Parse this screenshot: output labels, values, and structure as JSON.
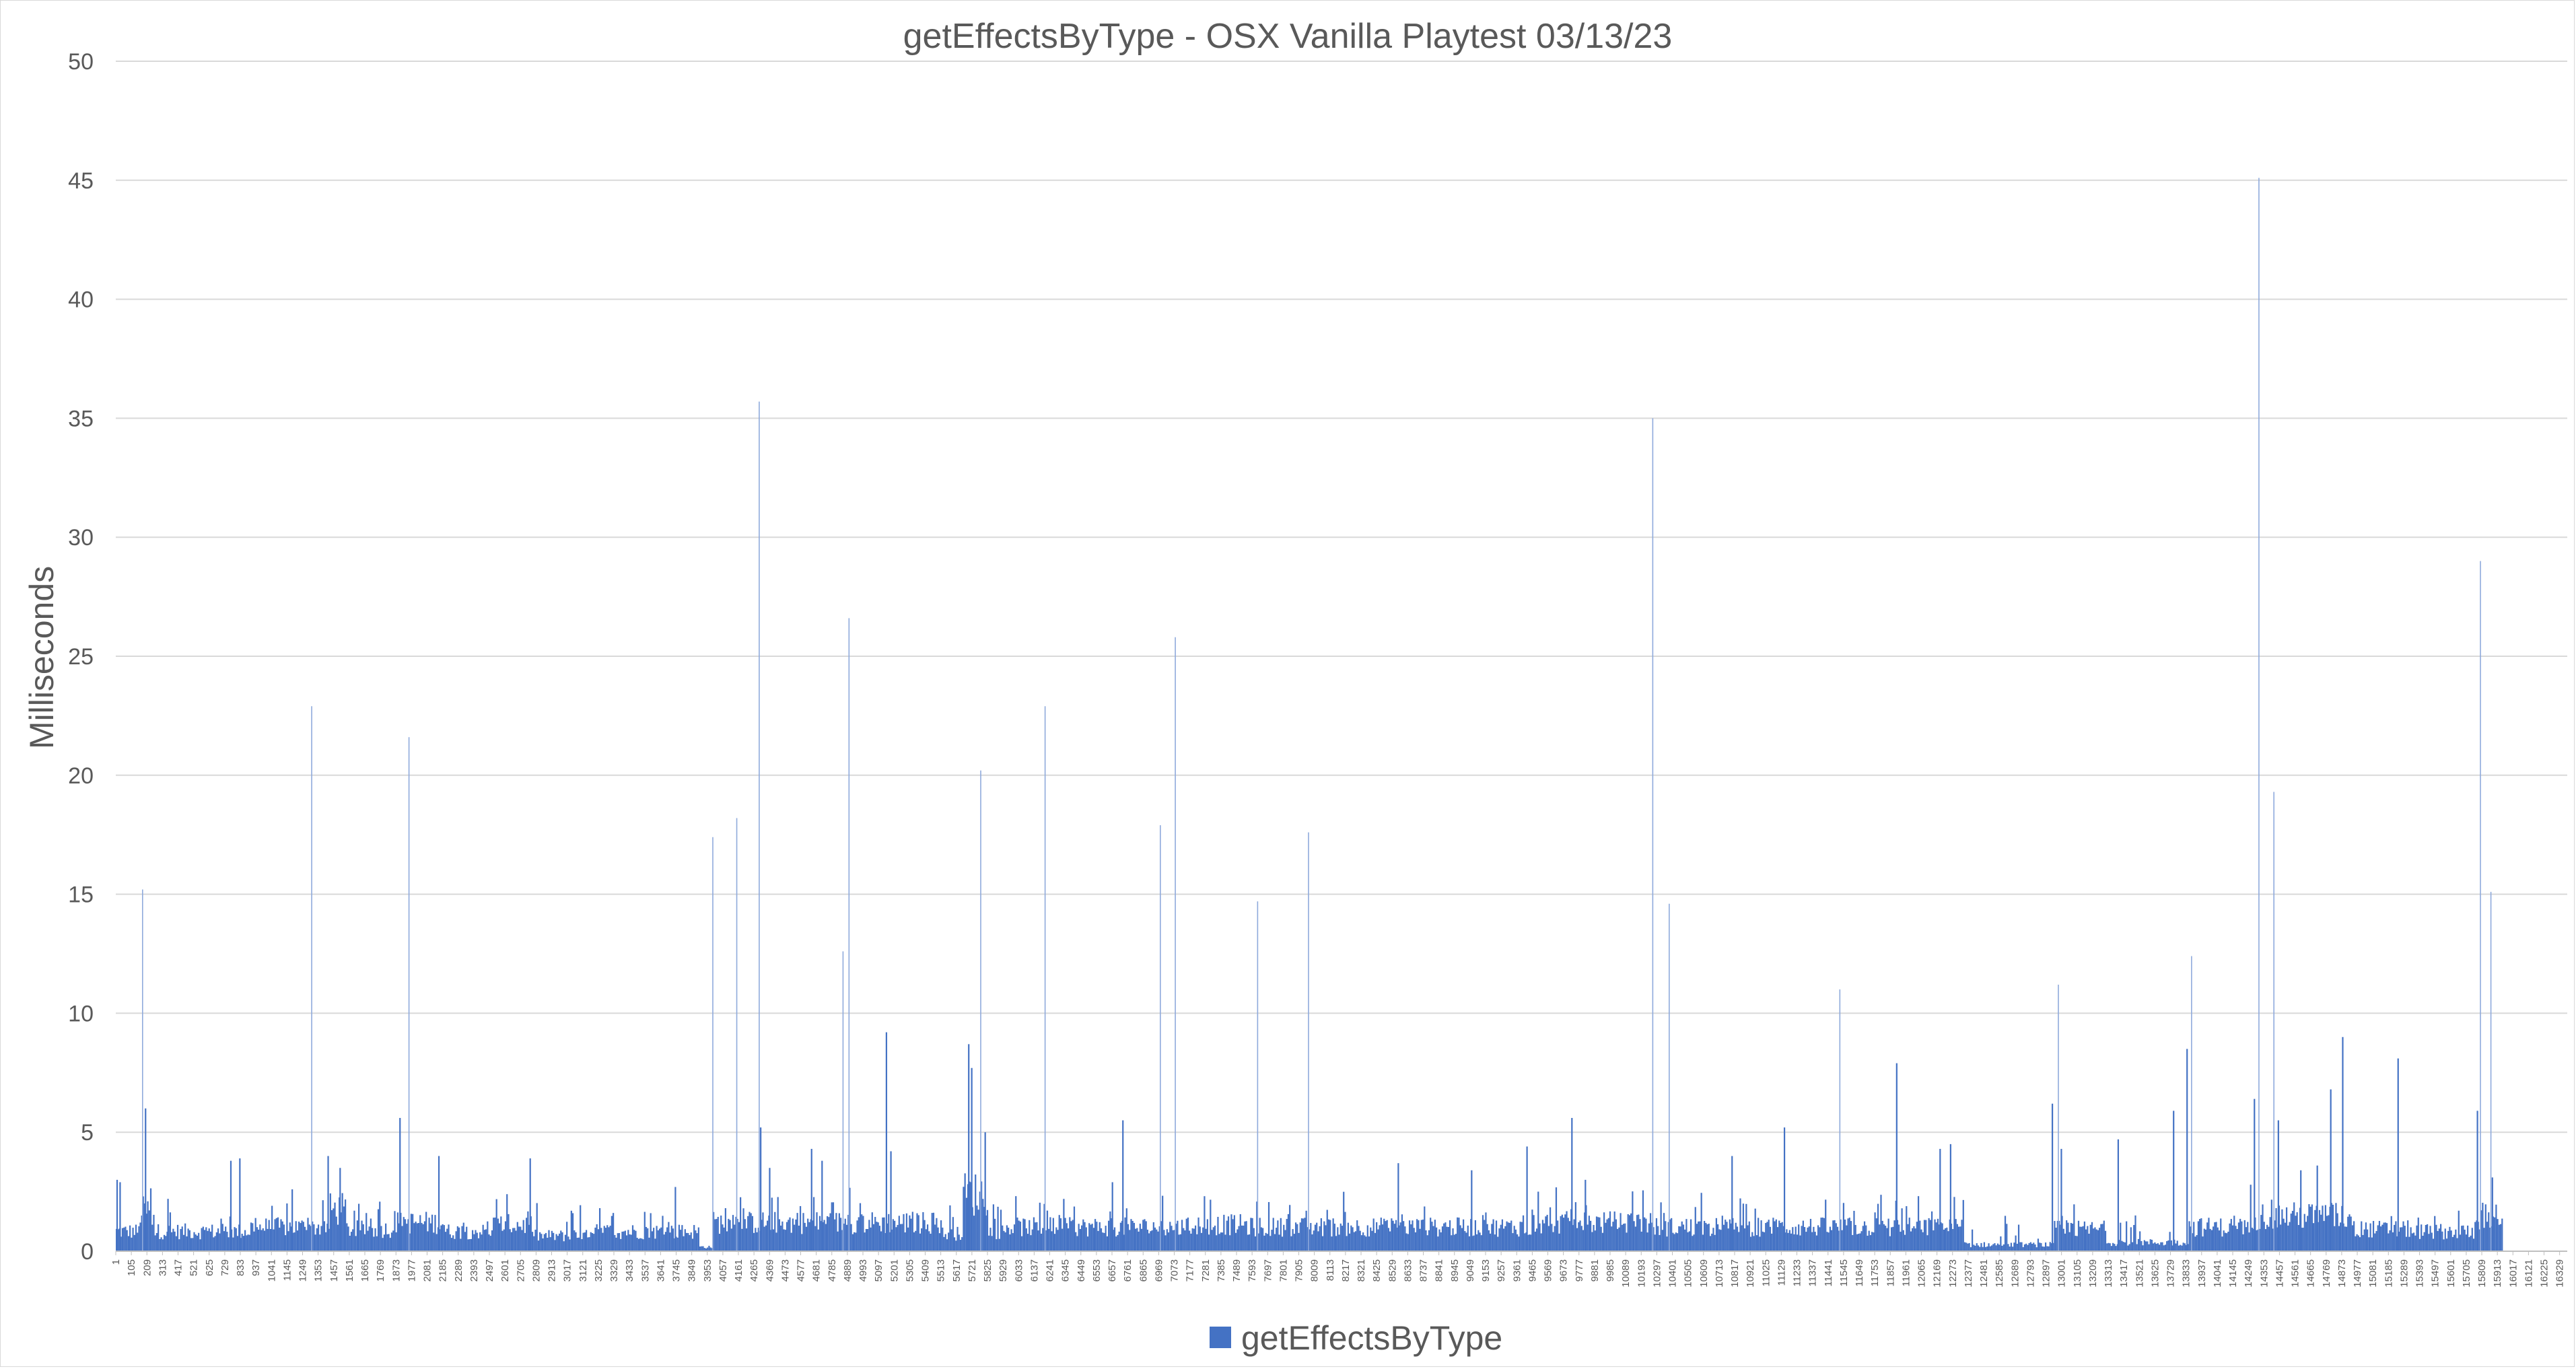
{
  "chart_data": {
    "type": "bar",
    "title": "getEffectsByType - OSX Vanilla Playtest 03/13/23",
    "xlabel": "",
    "ylabel": "Milliseconds",
    "ylim": [
      0,
      50
    ],
    "yticks": [
      0,
      5,
      10,
      15,
      20,
      25,
      30,
      35,
      40,
      45,
      50
    ],
    "xlim": [
      1,
      16380
    ],
    "x_tick_step": 104,
    "grid": true,
    "legend_position": "bottom",
    "bar_color": "#4472c4",
    "series": [
      {
        "name": "getEffectsByType",
        "spikes": [
          {
            "x": 10,
            "y": 3.0
          },
          {
            "x": 30,
            "y": 2.9
          },
          {
            "x": 180,
            "y": 15.2
          },
          {
            "x": 200,
            "y": 6.0
          },
          {
            "x": 350,
            "y": 2.2
          },
          {
            "x": 770,
            "y": 3.8
          },
          {
            "x": 830,
            "y": 3.9
          },
          {
            "x": 1180,
            "y": 2.6
          },
          {
            "x": 1310,
            "y": 22.9
          },
          {
            "x": 1420,
            "y": 4.0
          },
          {
            "x": 1500,
            "y": 3.5
          },
          {
            "x": 1900,
            "y": 5.6
          },
          {
            "x": 1960,
            "y": 21.6
          },
          {
            "x": 2160,
            "y": 4.0
          },
          {
            "x": 2770,
            "y": 3.9
          },
          {
            "x": 3740,
            "y": 2.7
          },
          {
            "x": 3990,
            "y": 17.4
          },
          {
            "x": 4150,
            "y": 18.2
          },
          {
            "x": 4300,
            "y": 35.7
          },
          {
            "x": 4310,
            "y": 5.2
          },
          {
            "x": 4370,
            "y": 3.5
          },
          {
            "x": 4650,
            "y": 4.3
          },
          {
            "x": 4720,
            "y": 3.8
          },
          {
            "x": 4860,
            "y": 12.6
          },
          {
            "x": 4900,
            "y": 26.6
          },
          {
            "x": 5150,
            "y": 9.2
          },
          {
            "x": 5180,
            "y": 4.2
          },
          {
            "x": 5700,
            "y": 8.7
          },
          {
            "x": 5720,
            "y": 7.7
          },
          {
            "x": 5780,
            "y": 20.2
          },
          {
            "x": 5810,
            "y": 5.0
          },
          {
            "x": 6210,
            "y": 22.9
          },
          {
            "x": 6660,
            "y": 2.9
          },
          {
            "x": 6730,
            "y": 5.5
          },
          {
            "x": 6980,
            "y": 17.9
          },
          {
            "x": 7080,
            "y": 25.8
          },
          {
            "x": 7630,
            "y": 14.7
          },
          {
            "x": 7970,
            "y": 17.6
          },
          {
            "x": 8570,
            "y": 3.7
          },
          {
            "x": 9060,
            "y": 3.4
          },
          {
            "x": 9430,
            "y": 4.4
          },
          {
            "x": 9730,
            "y": 5.6
          },
          {
            "x": 9820,
            "y": 3.0
          },
          {
            "x": 10270,
            "y": 35.0
          },
          {
            "x": 10380,
            "y": 14.6
          },
          {
            "x": 10800,
            "y": 4.0
          },
          {
            "x": 11150,
            "y": 5.2
          },
          {
            "x": 11520,
            "y": 11.0
          },
          {
            "x": 11900,
            "y": 7.9
          },
          {
            "x": 12190,
            "y": 4.3
          },
          {
            "x": 12260,
            "y": 4.5
          },
          {
            "x": 12940,
            "y": 6.2
          },
          {
            "x": 12980,
            "y": 11.2
          },
          {
            "x": 13000,
            "y": 4.3
          },
          {
            "x": 13380,
            "y": 4.7
          },
          {
            "x": 13750,
            "y": 5.9
          },
          {
            "x": 13840,
            "y": 8.5
          },
          {
            "x": 13870,
            "y": 12.4
          },
          {
            "x": 14290,
            "y": 6.4
          },
          {
            "x": 14320,
            "y": 45.1
          },
          {
            "x": 14420,
            "y": 19.3
          },
          {
            "x": 14450,
            "y": 5.5
          },
          {
            "x": 14600,
            "y": 3.4
          },
          {
            "x": 14710,
            "y": 3.6
          },
          {
            "x": 14800,
            "y": 6.8
          },
          {
            "x": 14880,
            "y": 9.0
          },
          {
            "x": 15250,
            "y": 8.1
          },
          {
            "x": 15780,
            "y": 5.9
          },
          {
            "x": 15800,
            "y": 29.0
          },
          {
            "x": 15870,
            "y": 15.1
          },
          {
            "x": 15880,
            "y": 3.1
          }
        ]
      }
    ],
    "baseline_segments": [
      {
        "from": 1,
        "to": 160,
        "level": 0.9
      },
      {
        "from": 160,
        "to": 260,
        "level": 1.8
      },
      {
        "from": 260,
        "to": 900,
        "level": 0.9
      },
      {
        "from": 900,
        "to": 1430,
        "level": 1.1
      },
      {
        "from": 1430,
        "to": 1540,
        "level": 1.9
      },
      {
        "from": 1540,
        "to": 1870,
        "level": 1.0
      },
      {
        "from": 1870,
        "to": 2200,
        "level": 1.3
      },
      {
        "from": 2200,
        "to": 2520,
        "level": 0.9
      },
      {
        "from": 2520,
        "to": 2790,
        "level": 1.2
      },
      {
        "from": 2790,
        "to": 3200,
        "level": 0.7
      },
      {
        "from": 3200,
        "to": 3900,
        "level": 0.9
      },
      {
        "from": 3900,
        "to": 3990,
        "level": 0.2
      },
      {
        "from": 3990,
        "to": 4700,
        "level": 1.3
      },
      {
        "from": 4700,
        "to": 5520,
        "level": 1.3
      },
      {
        "from": 5520,
        "to": 5660,
        "level": 0.8
      },
      {
        "from": 5660,
        "to": 5830,
        "level": 2.6
      },
      {
        "from": 5830,
        "to": 5960,
        "level": 0.9
      },
      {
        "from": 5960,
        "to": 7200,
        "level": 1.1
      },
      {
        "from": 7200,
        "to": 7560,
        "level": 1.2
      },
      {
        "from": 7560,
        "to": 9470,
        "level": 1.1
      },
      {
        "from": 9470,
        "to": 10280,
        "level": 1.3
      },
      {
        "from": 10280,
        "to": 12350,
        "level": 1.1
      },
      {
        "from": 12350,
        "to": 12950,
        "level": 0.3
      },
      {
        "from": 12950,
        "to": 13300,
        "level": 1.0
      },
      {
        "from": 13300,
        "to": 13850,
        "level": 0.4
      },
      {
        "from": 13850,
        "to": 14260,
        "level": 1.1
      },
      {
        "from": 14260,
        "to": 14950,
        "level": 1.6
      },
      {
        "from": 14950,
        "to": 15350,
        "level": 1.0
      },
      {
        "from": 15350,
        "to": 15760,
        "level": 0.9
      },
      {
        "from": 15760,
        "to": 15950,
        "level": 1.6
      }
    ]
  }
}
